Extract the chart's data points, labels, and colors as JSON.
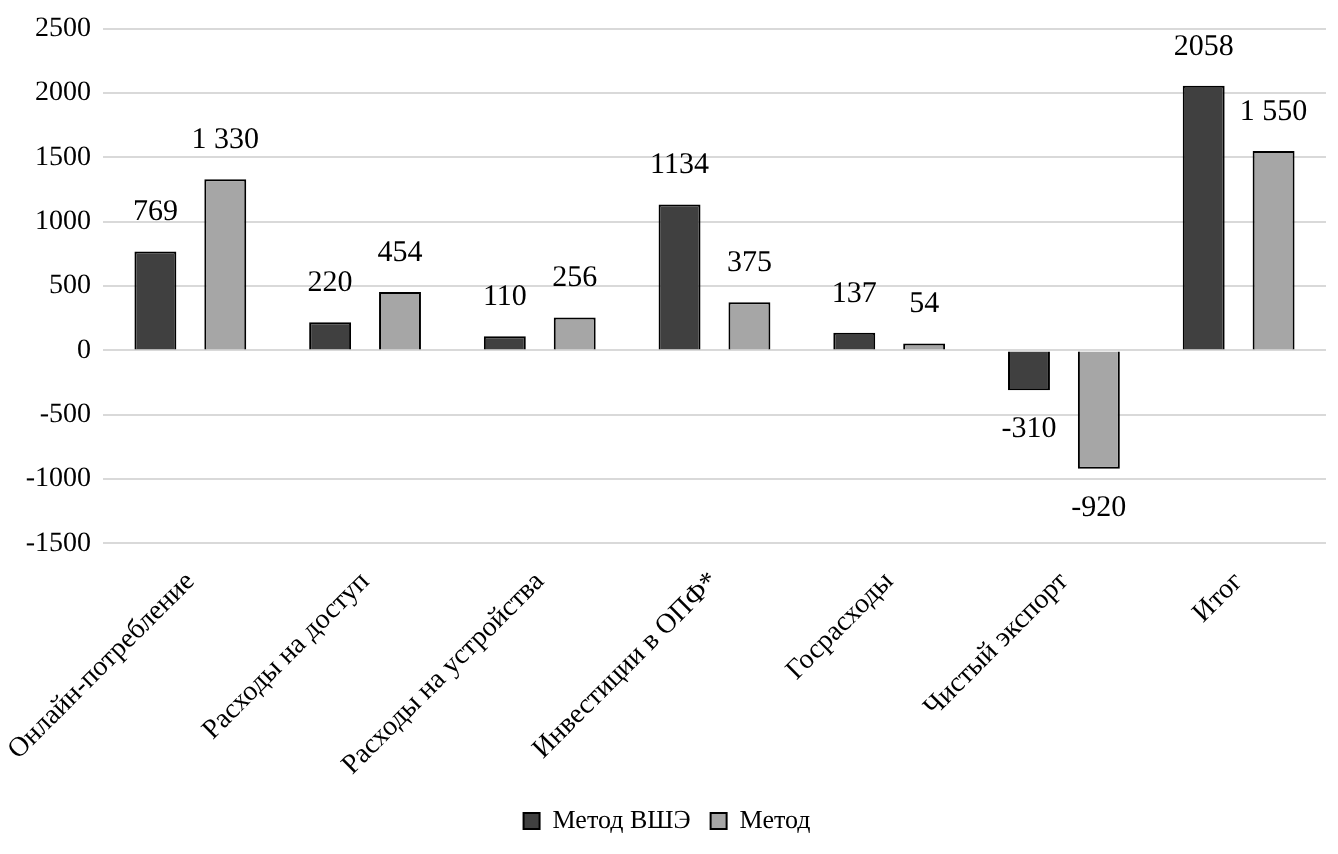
{
  "chart_data": {
    "type": "bar",
    "categories": [
      "Онлайн-потребление",
      "Расходы на доступ",
      "Расходы на устройства",
      "Инвестиции в ОПФ*",
      "Госрасходы",
      "Чистый экспорт",
      "Итог"
    ],
    "series": [
      {
        "name": "Метод ВШЭ",
        "color": "#404040",
        "values": [
          769,
          220,
          110,
          1134,
          137,
          -310,
          2058
        ],
        "value_labels": [
          "769",
          "220",
          "110",
          "1134",
          "137",
          "-310",
          "2058"
        ]
      },
      {
        "name": "Метод",
        "color": "#a6a6a6",
        "values": [
          1330,
          454,
          256,
          375,
          54,
          -920,
          1550
        ],
        "value_labels": [
          "1 330",
          "454",
          "256",
          "375",
          "54",
          "-920",
          "1 550"
        ]
      }
    ],
    "ylim": [
      -1500,
      2500
    ],
    "yticks": [
      -1500,
      -1000,
      -500,
      0,
      500,
      1000,
      1500,
      2000,
      2500
    ],
    "grid": "y",
    "legend": "bottom"
  }
}
